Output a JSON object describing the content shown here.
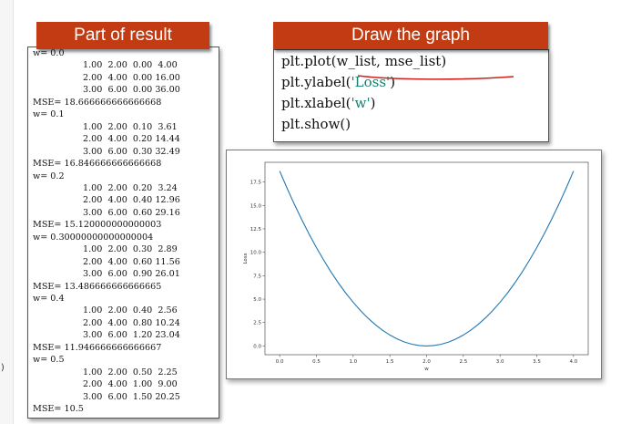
{
  "headers": {
    "result": "Part of result",
    "graph": "Draw the graph"
  },
  "left_fragment": ")",
  "result_lines": [
    {
      "text": "w= 0.0",
      "indent": false
    },
    {
      "text": "1.00  2.00  0.00  4.00",
      "indent": true
    },
    {
      "text": "2.00  4.00  0.00 16.00",
      "indent": true
    },
    {
      "text": "3.00  6.00  0.00 36.00",
      "indent": true
    },
    {
      "text": "MSE= 18.666666666666668",
      "indent": false
    },
    {
      "text": "w= 0.1",
      "indent": false
    },
    {
      "text": "1.00  2.00  0.10  3.61",
      "indent": true
    },
    {
      "text": "2.00  4.00  0.20 14.44",
      "indent": true
    },
    {
      "text": "3.00  6.00  0.30 32.49",
      "indent": true
    },
    {
      "text": "MSE= 16.846666666666668",
      "indent": false
    },
    {
      "text": "w= 0.2",
      "indent": false
    },
    {
      "text": "1.00  2.00  0.20  3.24",
      "indent": true
    },
    {
      "text": "2.00  4.00  0.40 12.96",
      "indent": true
    },
    {
      "text": "3.00  6.00  0.60 29.16",
      "indent": true
    },
    {
      "text": "MSE= 15.120000000000003",
      "indent": false
    },
    {
      "text": "w= 0.30000000000000004",
      "indent": false
    },
    {
      "text": "1.00  2.00  0.30  2.89",
      "indent": true
    },
    {
      "text": "2.00  4.00  0.60 11.56",
      "indent": true
    },
    {
      "text": "3.00  6.00  0.90 26.01",
      "indent": true
    },
    {
      "text": "MSE= 13.486666666666665",
      "indent": false
    },
    {
      "text": "w= 0.4",
      "indent": false
    },
    {
      "text": "1.00  2.00  0.40  2.56",
      "indent": true
    },
    {
      "text": "2.00  4.00  0.80 10.24",
      "indent": true
    },
    {
      "text": "3.00  6.00  1.20 23.04",
      "indent": true
    },
    {
      "text": "MSE= 11.946666666666667",
      "indent": false
    },
    {
      "text": "w= 0.5",
      "indent": false
    },
    {
      "text": "1.00  2.00  0.50  2.25",
      "indent": true
    },
    {
      "text": "2.00  4.00  1.00  9.00",
      "indent": true
    },
    {
      "text": "3.00  6.00  1.50 20.25",
      "indent": true
    },
    {
      "text": "MSE= 10.5",
      "indent": false
    }
  ],
  "code_lines": [
    [
      {
        "t": "plt.plot(w_list, mse_list)",
        "s": false
      }
    ],
    [
      {
        "t": "plt.ylabel(",
        "s": false
      },
      {
        "t": "'Loss'",
        "s": true
      },
      {
        "t": ")",
        "s": false
      }
    ],
    [
      {
        "t": "plt.xlabel(",
        "s": false
      },
      {
        "t": "'w'",
        "s": true
      },
      {
        "t": ")",
        "s": false
      }
    ],
    [
      {
        "t": "plt.show()",
        "s": false
      }
    ]
  ],
  "colors": {
    "header_bg": "#c23b12",
    "string_color": "#14806e",
    "underline": "#d0201a",
    "line_color": "#1f77b4"
  },
  "chart_data": {
    "type": "line",
    "xlabel": "w",
    "ylabel": "Loss",
    "xlim": [
      -0.2,
      4.2
    ],
    "ylim": [
      -0.93,
      19.6
    ],
    "xticks": [
      "0.0",
      "0.5",
      "1.0",
      "1.5",
      "2.0",
      "2.5",
      "3.0",
      "3.5",
      "4.0"
    ],
    "yticks": [
      "0.0",
      "2.5",
      "5.0",
      "7.5",
      "10.0",
      "12.5",
      "15.0",
      "17.5"
    ],
    "grid": false,
    "series": [
      {
        "x": [
          0.0,
          0.1,
          0.2,
          0.3,
          0.4,
          0.5,
          0.6,
          0.7,
          0.8,
          0.9,
          1.0,
          1.1,
          1.2,
          1.3,
          1.4,
          1.5,
          1.6,
          1.7,
          1.8,
          1.9,
          2.0,
          2.1,
          2.2,
          2.3,
          2.4,
          2.5,
          2.6,
          2.7,
          2.8,
          2.9,
          3.0,
          3.1,
          3.2,
          3.3,
          3.4,
          3.5,
          3.6,
          3.7,
          3.8,
          3.9,
          4.0
        ],
        "values": [
          18.67,
          16.85,
          15.12,
          13.49,
          11.95,
          10.5,
          9.15,
          7.88,
          6.72,
          5.64,
          4.67,
          3.78,
          2.99,
          2.29,
          1.68,
          1.17,
          0.75,
          0.42,
          0.19,
          0.05,
          0.0,
          0.05,
          0.19,
          0.42,
          0.75,
          1.17,
          1.68,
          2.29,
          2.99,
          3.78,
          4.67,
          5.64,
          6.72,
          7.88,
          9.15,
          10.5,
          11.95,
          13.49,
          15.12,
          16.85,
          18.67
        ]
      }
    ]
  }
}
